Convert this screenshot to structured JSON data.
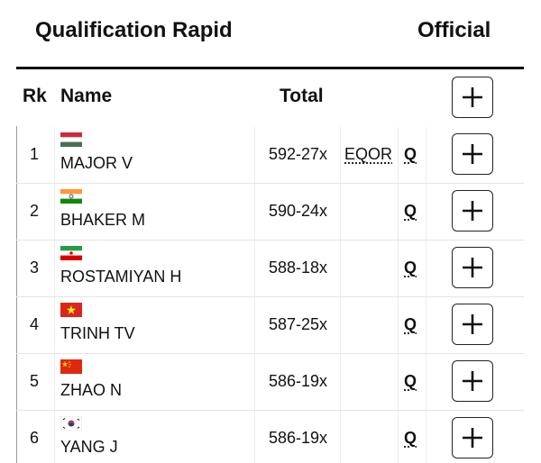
{
  "header": {
    "title": "Qualification Rapid",
    "official": "Official"
  },
  "table": {
    "columns": [
      "Rk",
      "Name",
      "Total"
    ],
    "rows": [
      {
        "rank": 1,
        "name": "MAJOR V",
        "total": "592-27x",
        "record": "EQOR",
        "status": "Q"
      },
      {
        "rank": 2,
        "name": "BHAKER M",
        "total": "590-24x",
        "status": "Q"
      },
      {
        "rank": 3,
        "name": "ROSTAMIYAN H",
        "total": "588-18x",
        "status": "Q"
      },
      {
        "rank": 4,
        "name": "TRINH TV",
        "total": "587-25x",
        "status": "Q"
      },
      {
        "rank": 5,
        "name": "ZHAO N",
        "total": "586-19x",
        "status": "Q"
      },
      {
        "rank": 6,
        "name": "YANG J",
        "total": "586-19x",
        "status": "Q"
      }
    ]
  }
}
